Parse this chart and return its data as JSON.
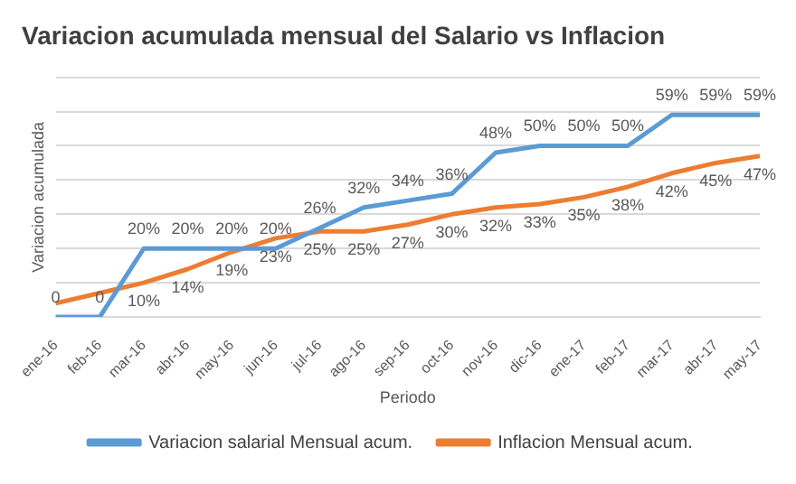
{
  "chart_data": {
    "type": "line",
    "title": "Variacion acumulada mensual del Salario vs Inflacion",
    "xlabel": "Periodo",
    "ylabel": "Variacion acumulada",
    "categories": [
      "ene-16",
      "feb-16",
      "mar-16",
      "abr-16",
      "may-16",
      "jun-16",
      "jul-16",
      "ago-16",
      "sep-16",
      "oct-16",
      "nov-16",
      "dic-16",
      "ene-17",
      "feb-17",
      "mar-17",
      "abr-17",
      "may-17"
    ],
    "series": [
      {
        "name": "Variacion salarial Mensual acum.",
        "color": "#5b9bd5",
        "values": [
          0,
          0,
          20,
          20,
          20,
          20,
          26,
          32,
          34,
          36,
          48,
          50,
          50,
          50,
          59,
          59,
          59
        ],
        "value_labels": [
          "0",
          "0",
          "20%",
          "20%",
          "20%",
          "20%",
          "26%",
          "32%",
          "34%",
          "36%",
          "48%",
          "50%",
          "50%",
          "50%",
          "59%",
          "59%",
          "59%"
        ]
      },
      {
        "name": "Inflacion Mensual acum.",
        "color": "#ed7d31",
        "values": [
          4,
          7,
          10,
          14,
          19,
          23,
          25,
          25,
          27,
          30,
          32,
          33,
          35,
          38,
          42,
          45,
          47
        ],
        "value_labels": [
          null,
          null,
          "10%",
          "14%",
          "19%",
          "23%",
          "25%",
          "25%",
          "27%",
          "30%",
          "32%",
          "33%",
          "35%",
          "38%",
          "42%",
          "45%",
          "47%"
        ]
      }
    ],
    "ylim": [
      0,
      70
    ],
    "yticks": [
      {
        "value": 0,
        "label": null
      },
      {
        "value": 10,
        "label": null
      },
      {
        "value": 20,
        "label": null
      },
      {
        "value": 30,
        "label": null
      },
      {
        "value": 40,
        "label": null
      },
      {
        "value": 50,
        "label": null
      },
      {
        "value": 60,
        "label": null
      },
      {
        "value": 70,
        "label": null
      }
    ],
    "tick_labels": "x",
    "grid": "y",
    "legend": "bottom",
    "marker": "none",
    "line_style": "solid"
  }
}
